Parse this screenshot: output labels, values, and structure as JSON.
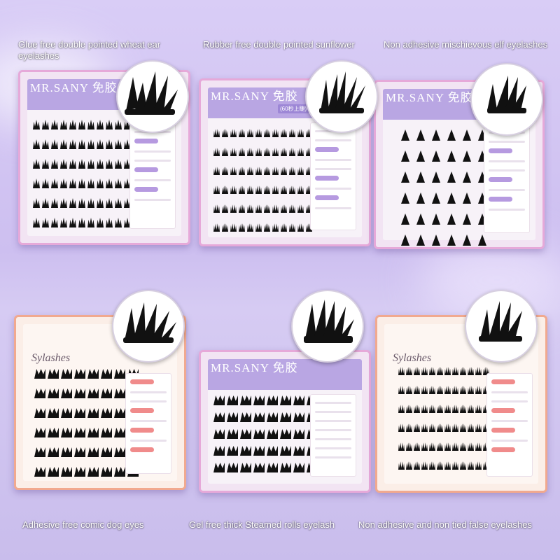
{
  "captions": {
    "wheat_ear": "Glue free double pointed wheat ear eyelashes",
    "sunflower": "Rubber free double pointed sunflower",
    "elf": "Non adhesive mischievous elf eyelashes",
    "comic_dog": "Adhesive free comic dog eyes",
    "steamed_rolls": "Gel free thick Steamed rolls eyelash",
    "non_tied": "Non adhesive and non tied false eyelashes"
  },
  "box_labels": {
    "brand": "MR.SANY",
    "brand_cn": "免胶",
    "tag": "(60秒上睫)",
    "script_logo": "Sylashes"
  },
  "colors": {
    "background": "#d9cdf6",
    "purple_frame": "#e6a9d9",
    "peach_frame": "#f1a98f",
    "header": "#b9a6e3",
    "lash": "#111111"
  }
}
